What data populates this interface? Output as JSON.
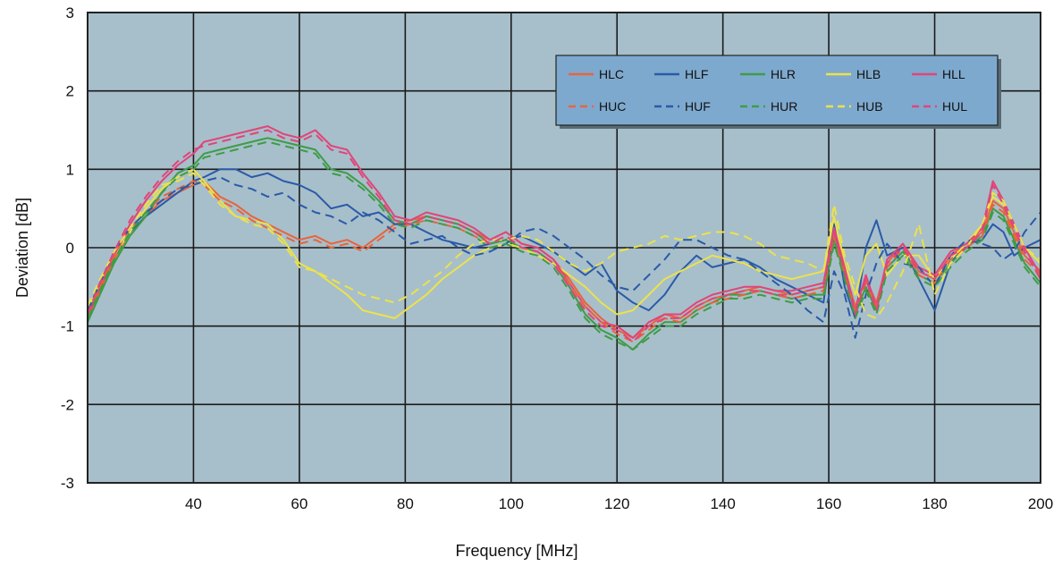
{
  "chart_data": {
    "type": "line",
    "xlabel": "Frequency [MHz]",
    "ylabel": "Deviation [dB]",
    "xlim": [
      20,
      200
    ],
    "ylim": [
      -3,
      3
    ],
    "xticks": [
      40,
      60,
      80,
      100,
      120,
      140,
      160,
      180,
      200
    ],
    "xtick_labels": [
      "40",
      "60",
      "80",
      "100",
      "120",
      "140",
      "160",
      "180",
      "200"
    ],
    "yticks": [
      -3,
      -2,
      -1,
      0,
      1,
      2,
      3
    ],
    "ytick_labels": [
      "-3",
      "-2",
      "-1",
      "0",
      "1",
      "2",
      "3"
    ],
    "grid": true,
    "legend_position": "top-right",
    "plot_background": "#a7bfcb",
    "x": [
      20,
      22,
      25,
      28,
      31,
      34,
      37,
      40,
      42,
      45,
      48,
      51,
      54,
      57,
      60,
      63,
      66,
      69,
      72,
      75,
      78,
      81,
      84,
      87,
      90,
      93,
      96,
      99,
      102,
      105,
      108,
      111,
      114,
      117,
      120,
      123,
      126,
      129,
      132,
      135,
      138,
      141,
      144,
      147,
      150,
      153,
      156,
      159,
      161,
      163,
      165,
      167,
      169,
      171,
      174,
      177,
      180,
      183,
      186,
      189,
      191,
      193,
      195,
      197,
      200
    ],
    "series": [
      {
        "name": "HLC",
        "color": "#e8643c",
        "dash": "solid",
        "values": [
          -0.9,
          -0.6,
          -0.15,
          0.2,
          0.4,
          0.6,
          0.7,
          0.8,
          0.85,
          0.65,
          0.55,
          0.4,
          0.3,
          0.2,
          0.1,
          0.15,
          0.05,
          0.1,
          0.0,
          0.15,
          0.3,
          0.35,
          0.4,
          0.35,
          0.3,
          0.2,
          0.1,
          0.2,
          0.05,
          0.0,
          -0.15,
          -0.4,
          -0.7,
          -0.9,
          -1.05,
          -1.15,
          -1.0,
          -0.85,
          -0.9,
          -0.75,
          -0.65,
          -0.6,
          -0.55,
          -0.5,
          -0.55,
          -0.6,
          -0.55,
          -0.5,
          0.2,
          -0.3,
          -0.75,
          -0.4,
          -0.7,
          -0.2,
          0.05,
          -0.3,
          -0.4,
          -0.1,
          0.05,
          0.2,
          0.6,
          0.5,
          0.2,
          -0.1,
          -0.3
        ]
      },
      {
        "name": "HLF",
        "color": "#2a5aa8",
        "dash": "solid",
        "values": [
          -0.85,
          -0.55,
          -0.1,
          0.2,
          0.4,
          0.55,
          0.7,
          0.85,
          0.9,
          1.0,
          1.0,
          0.9,
          0.95,
          0.85,
          0.8,
          0.7,
          0.5,
          0.55,
          0.4,
          0.45,
          0.3,
          0.3,
          0.2,
          0.1,
          0.05,
          0.0,
          0.05,
          0.1,
          0.15,
          0.05,
          -0.05,
          -0.2,
          -0.35,
          -0.2,
          -0.55,
          -0.7,
          -0.8,
          -0.6,
          -0.3,
          -0.1,
          -0.25,
          -0.2,
          -0.15,
          -0.25,
          -0.4,
          -0.5,
          -0.6,
          -0.7,
          0.3,
          -0.5,
          -0.9,
          0.0,
          0.35,
          -0.1,
          0.0,
          -0.4,
          -0.8,
          -0.2,
          0.05,
          0.1,
          0.3,
          0.2,
          -0.1,
          0.0,
          0.1
        ]
      },
      {
        "name": "HLR",
        "color": "#3f9c46",
        "dash": "solid",
        "values": [
          -0.95,
          -0.65,
          -0.2,
          0.15,
          0.4,
          0.7,
          0.95,
          1.05,
          1.2,
          1.25,
          1.3,
          1.35,
          1.4,
          1.35,
          1.3,
          1.25,
          1.0,
          0.95,
          0.8,
          0.6,
          0.35,
          0.3,
          0.4,
          0.35,
          0.3,
          0.2,
          0.05,
          0.1,
          0.0,
          -0.05,
          -0.2,
          -0.5,
          -0.85,
          -1.05,
          -1.15,
          -1.3,
          -1.1,
          -0.95,
          -0.95,
          -0.8,
          -0.7,
          -0.6,
          -0.6,
          -0.55,
          -0.6,
          -0.65,
          -0.6,
          -0.6,
          0.1,
          -0.35,
          -0.85,
          -0.5,
          -0.8,
          -0.25,
          -0.05,
          -0.35,
          -0.45,
          -0.2,
          0.0,
          0.15,
          0.5,
          0.4,
          0.1,
          -0.2,
          -0.45
        ]
      },
      {
        "name": "HLB",
        "color": "#ece24a",
        "dash": "solid",
        "values": [
          -0.8,
          -0.5,
          -0.1,
          0.2,
          0.5,
          0.75,
          0.9,
          1.0,
          0.85,
          0.6,
          0.4,
          0.35,
          0.3,
          0.1,
          -0.2,
          -0.3,
          -0.45,
          -0.6,
          -0.8,
          -0.85,
          -0.9,
          -0.75,
          -0.6,
          -0.4,
          -0.25,
          -0.1,
          0.0,
          0.05,
          0.0,
          -0.1,
          -0.2,
          -0.35,
          -0.5,
          -0.7,
          -0.85,
          -0.8,
          -0.6,
          -0.4,
          -0.3,
          -0.2,
          -0.1,
          -0.15,
          -0.2,
          -0.3,
          -0.35,
          -0.4,
          -0.35,
          -0.3,
          0.4,
          -0.2,
          -0.6,
          -0.1,
          0.05,
          -0.35,
          -0.1,
          -0.1,
          -0.4,
          -0.15,
          0.05,
          0.3,
          0.65,
          0.55,
          0.3,
          0.0,
          -0.2
        ]
      },
      {
        "name": "HLL",
        "color": "#e0457a",
        "dash": "solid",
        "values": [
          -0.9,
          -0.55,
          -0.1,
          0.3,
          0.6,
          0.85,
          1.05,
          1.2,
          1.35,
          1.4,
          1.45,
          1.5,
          1.55,
          1.45,
          1.4,
          1.5,
          1.3,
          1.25,
          0.95,
          0.7,
          0.4,
          0.35,
          0.45,
          0.4,
          0.35,
          0.25,
          0.1,
          0.2,
          0.05,
          0.0,
          -0.15,
          -0.45,
          -0.75,
          -0.95,
          -1.0,
          -1.15,
          -0.95,
          -0.85,
          -0.85,
          -0.7,
          -0.6,
          -0.55,
          -0.5,
          -0.5,
          -0.55,
          -0.55,
          -0.5,
          -0.45,
          0.25,
          -0.25,
          -0.8,
          -0.35,
          -0.75,
          -0.15,
          0.05,
          -0.25,
          -0.35,
          -0.05,
          0.05,
          0.25,
          0.85,
          0.6,
          0.3,
          0.0,
          -0.35
        ]
      },
      {
        "name": "HUC",
        "color": "#e8643c",
        "dash": "dashed",
        "values": [
          -0.85,
          -0.55,
          -0.1,
          0.25,
          0.45,
          0.65,
          0.75,
          0.85,
          0.8,
          0.6,
          0.5,
          0.35,
          0.25,
          0.15,
          0.05,
          0.1,
          0.0,
          0.05,
          -0.05,
          0.1,
          0.25,
          0.3,
          0.35,
          0.3,
          0.25,
          0.15,
          0.05,
          0.15,
          0.0,
          -0.05,
          -0.2,
          -0.45,
          -0.75,
          -0.95,
          -1.1,
          -1.2,
          -1.05,
          -0.9,
          -0.95,
          -0.8,
          -0.7,
          -0.65,
          -0.6,
          -0.55,
          -0.6,
          -0.65,
          -0.6,
          -0.55,
          0.15,
          -0.35,
          -0.8,
          -0.45,
          -0.75,
          -0.25,
          0.0,
          -0.35,
          -0.45,
          -0.15,
          0.0,
          0.15,
          0.55,
          0.45,
          0.15,
          -0.15,
          -0.35
        ]
      },
      {
        "name": "HUF",
        "color": "#2a5aa8",
        "dash": "dashed",
        "values": [
          -0.8,
          -0.5,
          -0.05,
          0.25,
          0.45,
          0.6,
          0.75,
          0.8,
          0.85,
          0.9,
          0.8,
          0.75,
          0.65,
          0.7,
          0.55,
          0.45,
          0.4,
          0.3,
          0.45,
          0.35,
          0.2,
          0.05,
          0.1,
          0.15,
          0.0,
          -0.1,
          -0.05,
          0.05,
          0.2,
          0.25,
          0.15,
          0.0,
          -0.15,
          -0.35,
          -0.5,
          -0.55,
          -0.35,
          -0.15,
          0.1,
          0.1,
          0.0,
          -0.1,
          -0.15,
          -0.3,
          -0.45,
          -0.6,
          -0.8,
          -0.95,
          -0.3,
          -0.6,
          -1.15,
          -0.6,
          -0.2,
          0.05,
          -0.2,
          -0.25,
          -0.5,
          -0.1,
          0.1,
          0.05,
          0.0,
          -0.15,
          -0.05,
          0.2,
          0.45
        ]
      },
      {
        "name": "HUR",
        "color": "#3f9c46",
        "dash": "dashed",
        "values": [
          -0.9,
          -0.6,
          -0.15,
          0.2,
          0.45,
          0.7,
          0.9,
          1.0,
          1.15,
          1.2,
          1.25,
          1.3,
          1.35,
          1.3,
          1.25,
          1.2,
          0.95,
          0.9,
          0.75,
          0.55,
          0.3,
          0.25,
          0.35,
          0.3,
          0.25,
          0.15,
          0.0,
          0.05,
          -0.05,
          -0.1,
          -0.25,
          -0.55,
          -0.9,
          -1.1,
          -1.2,
          -1.3,
          -1.15,
          -1.0,
          -1.0,
          -0.85,
          -0.75,
          -0.65,
          -0.65,
          -0.6,
          -0.65,
          -0.7,
          -0.65,
          -0.65,
          0.05,
          -0.4,
          -0.9,
          -0.55,
          -0.85,
          -0.3,
          -0.1,
          -0.4,
          -0.5,
          -0.25,
          -0.05,
          0.1,
          0.45,
          0.35,
          0.05,
          -0.25,
          -0.5
        ]
      },
      {
        "name": "HUB",
        "color": "#ece24a",
        "dash": "dashed",
        "values": [
          -0.75,
          -0.45,
          -0.05,
          0.25,
          0.55,
          0.8,
          0.85,
          0.95,
          0.8,
          0.55,
          0.4,
          0.3,
          0.25,
          0.05,
          -0.25,
          -0.3,
          -0.4,
          -0.5,
          -0.6,
          -0.65,
          -0.7,
          -0.6,
          -0.45,
          -0.3,
          -0.1,
          0.05,
          0.1,
          0.1,
          0.15,
          0.1,
          -0.05,
          -0.2,
          -0.3,
          -0.2,
          -0.05,
          0.0,
          0.05,
          0.15,
          0.1,
          0.15,
          0.2,
          0.2,
          0.15,
          0.05,
          -0.1,
          -0.15,
          -0.2,
          -0.3,
          0.55,
          -0.1,
          -0.5,
          -0.85,
          -0.9,
          -0.7,
          -0.3,
          0.3,
          -0.6,
          -0.2,
          0.0,
          0.3,
          0.7,
          0.6,
          0.3,
          0.0,
          -0.15
        ]
      },
      {
        "name": "HUL",
        "color": "#e0457a",
        "dash": "dashed",
        "values": [
          -0.85,
          -0.5,
          -0.05,
          0.35,
          0.65,
          0.9,
          1.1,
          1.25,
          1.3,
          1.35,
          1.4,
          1.45,
          1.5,
          1.4,
          1.35,
          1.45,
          1.25,
          1.2,
          0.9,
          0.65,
          0.35,
          0.3,
          0.4,
          0.35,
          0.3,
          0.2,
          0.05,
          0.15,
          0.0,
          -0.05,
          -0.2,
          -0.5,
          -0.8,
          -1.0,
          -1.05,
          -1.2,
          -1.0,
          -0.9,
          -0.9,
          -0.75,
          -0.65,
          -0.6,
          -0.55,
          -0.55,
          -0.6,
          -0.6,
          -0.55,
          -0.5,
          0.2,
          -0.3,
          -0.85,
          -0.4,
          -0.8,
          -0.2,
          0.0,
          -0.3,
          -0.4,
          -0.1,
          0.0,
          0.2,
          0.8,
          0.55,
          0.25,
          -0.05,
          -0.4
        ]
      }
    ]
  }
}
